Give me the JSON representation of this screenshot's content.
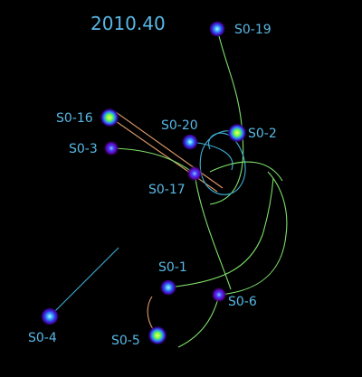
{
  "epoch": "2010.40",
  "stars": [
    {
      "id": "s019",
      "name": "S0-19",
      "glow": "blue"
    },
    {
      "id": "s016",
      "name": "S0-16",
      "glow": "green"
    },
    {
      "id": "s020",
      "name": "S0-20",
      "glow": "blue"
    },
    {
      "id": "s02",
      "name": "S0-2",
      "glow": "green"
    },
    {
      "id": "s03",
      "name": "S0-3",
      "glow": "purple"
    },
    {
      "id": "s017",
      "name": "S0-17",
      "glow": "purple"
    },
    {
      "id": "s01",
      "name": "S0-1",
      "glow": "blue"
    },
    {
      "id": "s06",
      "name": "S0-6",
      "glow": "purple"
    },
    {
      "id": "s04",
      "name": "S0-4",
      "glow": "blue"
    },
    {
      "id": "s05",
      "name": "S0-5",
      "glow": "green"
    }
  ],
  "colors": {
    "background": "#000000",
    "label": "#58b8e6",
    "orbit_green": "#7de06a",
    "orbit_cyan": "#3fb0d8",
    "orbit_orange": "#e09a6a"
  }
}
